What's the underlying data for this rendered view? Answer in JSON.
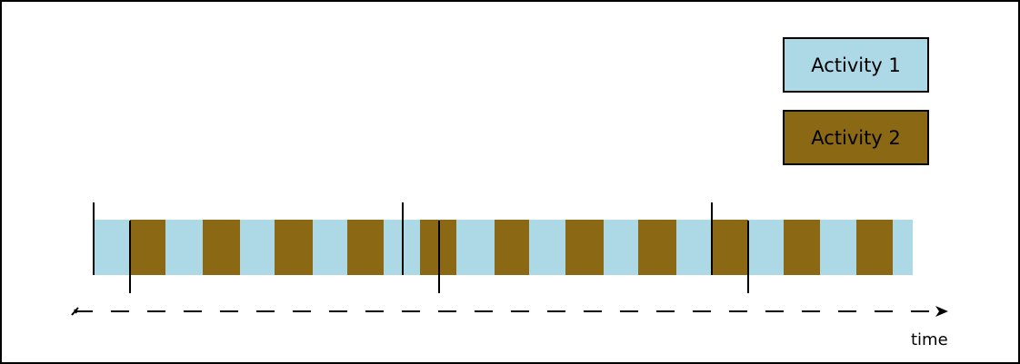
{
  "colors": {
    "activity_1": "#add8e6",
    "activity_2": "#8b6914",
    "stroke": "#000000",
    "background": "#ffffff"
  },
  "legend": [
    {
      "label": "Activity 1",
      "color": "#add8e6"
    },
    {
      "label": "Activity 2",
      "color": "#8b6914"
    }
  ],
  "axis": {
    "label": "time",
    "style": "dashed-arrow"
  },
  "timeline": {
    "background_activity": "Activity 1",
    "interleaved_activity": "Activity 2",
    "activity_2_segment_count": 11,
    "tall_markers": 3,
    "short_markers": 3
  }
}
